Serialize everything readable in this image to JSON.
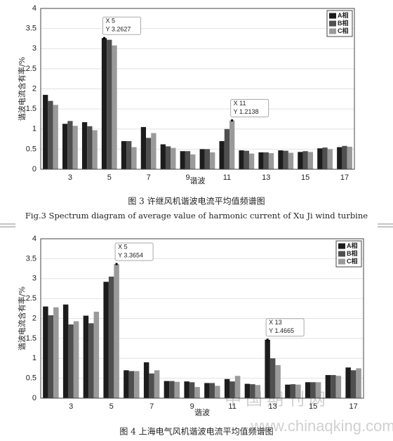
{
  "chart_data": [
    {
      "type": "bar",
      "x_label": "谐波",
      "y_label": "谐波电流含有率/%",
      "categories": [
        null,
        "3",
        null,
        "5",
        null,
        "7",
        null,
        "9",
        null,
        "11",
        null,
        "13",
        null,
        "15",
        null,
        "17"
      ],
      "series": [
        {
          "name": "A相",
          "color": "#1c1c1c",
          "values": [
            1.85,
            1.13,
            1.17,
            3.2627,
            0.7,
            1.05,
            0.62,
            0.45,
            0.5,
            0.7,
            0.47,
            0.42,
            0.47,
            0.43,
            0.52,
            0.55
          ]
        },
        {
          "name": "B相",
          "color": "#4f4f4f",
          "values": [
            1.7,
            1.2,
            1.07,
            3.22,
            0.7,
            0.78,
            0.57,
            0.45,
            0.5,
            1.0,
            0.46,
            0.42,
            0.46,
            0.45,
            0.54,
            0.58
          ]
        },
        {
          "name": "C相",
          "color": "#9a9a9a",
          "values": [
            1.6,
            1.08,
            0.97,
            3.08,
            0.55,
            0.9,
            0.53,
            0.37,
            0.42,
            1.2138,
            0.39,
            0.4,
            0.41,
            0.43,
            0.5,
            0.56
          ]
        }
      ],
      "ylim": [
        0,
        4
      ],
      "yticks": [
        0,
        0.5,
        1,
        1.5,
        2,
        2.5,
        3,
        3.5,
        4
      ],
      "grid": true,
      "legend": "top-right",
      "annotations": [
        {
          "x": "X 5",
          "y": "Y 3.2627"
        },
        {
          "x": "X 11",
          "y": "Y 1.2138"
        }
      ],
      "caption": "图 3  许继风机谐波电流平均值频谱图",
      "caption_en": "Fig.3 Spectrum diagram of average value of harmonic current of Xu Ji wind turbine"
    },
    {
      "type": "bar",
      "x_label": "谐波",
      "y_label": "谐波电流含有率/%",
      "categories": [
        null,
        "3",
        null,
        "5",
        null,
        "7",
        null,
        "9",
        null,
        "11",
        null,
        "13",
        null,
        "15",
        null,
        "17"
      ],
      "series": [
        {
          "name": "A相",
          "color": "#1c1c1c",
          "values": [
            2.3,
            2.35,
            2.07,
            2.92,
            0.7,
            0.9,
            0.43,
            0.42,
            0.38,
            0.48,
            0.36,
            1.4665,
            0.34,
            0.4,
            0.58,
            0.77
          ]
        },
        {
          "name": "B相",
          "color": "#4f4f4f",
          "values": [
            2.08,
            1.85,
            1.88,
            3.05,
            0.68,
            0.62,
            0.43,
            0.4,
            0.38,
            0.42,
            0.35,
            1.0,
            0.35,
            0.4,
            0.58,
            0.7
          ]
        },
        {
          "name": "C相",
          "color": "#9a9a9a",
          "values": [
            2.28,
            1.93,
            2.17,
            3.3654,
            0.68,
            0.7,
            0.41,
            0.28,
            0.31,
            0.56,
            0.33,
            0.83,
            0.34,
            0.4,
            0.56,
            0.75
          ]
        }
      ],
      "ylim": [
        0,
        4
      ],
      "yticks": [
        0,
        0.5,
        1,
        1.5,
        2,
        2.5,
        3,
        3.5,
        4
      ],
      "grid": true,
      "legend": "top-right",
      "annotations": [
        {
          "x": "X 5",
          "y": "Y 3.3654"
        },
        {
          "x": "X 13",
          "y": "Y 1.4665"
        }
      ],
      "caption": "图 4  上海电气风机谐波电流平均值频谱图"
    }
  ],
  "watermark": {
    "text": "中国期刊网",
    "url": "www.chinaqking.com"
  }
}
